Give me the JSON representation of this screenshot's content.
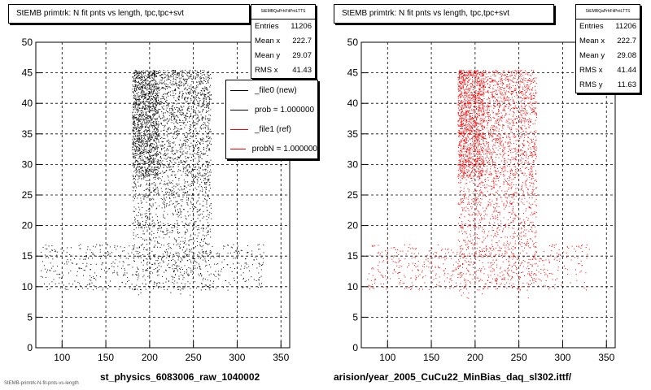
{
  "chart_data": [
    {
      "type": "scatter",
      "title": "StEMB primtrk: N fit pnts vs length, tpc,tpc+svt",
      "xlabel": "st_physics_6083006_raw_1040002",
      "ylabel": "",
      "xlim": [
        70,
        360
      ],
      "ylim": [
        0,
        50
      ],
      "xticks": [
        100,
        150,
        200,
        250,
        300,
        350
      ],
      "yticks": [
        0,
        5,
        10,
        15,
        20,
        25,
        30,
        35,
        40,
        45,
        50
      ],
      "grid": true,
      "marker_color": "#000000",
      "stats": {
        "header": "StEMBQaPrhFitPntLTTS",
        "rows": [
          {
            "label": "Entries",
            "value": "11206"
          },
          {
            "label": "Mean x",
            "value": "222.7"
          },
          {
            "label": "Mean y",
            "value": "29.07"
          },
          {
            "label": "RMS x",
            "value": "41.43"
          }
        ]
      },
      "legend": {
        "placement": "top-right",
        "entries": [
          {
            "label": "_file0 (new)",
            "color": "#000000"
          },
          {
            "label": "prob = 1.000000",
            "color": "#000000"
          },
          {
            "label": "_file1 (ref)",
            "color": "#ff0000"
          },
          {
            "label": "probN = 1.000000",
            "color": "#ff0000"
          }
        ]
      },
      "density_regions": [
        {
          "x": [
            180,
            270
          ],
          "y": [
            8,
            45.5
          ],
          "weight": 0.66
        },
        {
          "x": [
            180,
            210
          ],
          "y": [
            28,
            45.5
          ],
          "weight": 0.2
        },
        {
          "x": [
            75,
            330
          ],
          "y": [
            9.5,
            17
          ],
          "weight": 0.14
        }
      ]
    },
    {
      "type": "scatter",
      "title": "StEMB primtrk: N fit pnts vs length, tpc,tpc+svt",
      "xlabel": "arision/year_2005_CuCu22_MinBias_daq_sl302.ittf/",
      "ylabel": "",
      "xlim": [
        70,
        360
      ],
      "ylim": [
        0,
        50
      ],
      "xticks": [
        100,
        150,
        200,
        250,
        300,
        350
      ],
      "yticks": [
        0,
        5,
        10,
        15,
        20,
        25,
        30,
        35,
        40,
        45,
        50
      ],
      "grid": true,
      "marker_color": "#ff0000",
      "stats": {
        "header": "StEMBQaPrhFitPntLTTS",
        "rows": [
          {
            "label": "Entries",
            "value": "11206"
          },
          {
            "label": "Mean x",
            "value": "222.7"
          },
          {
            "label": "Mean y",
            "value": "29.08"
          },
          {
            "label": "RMS x",
            "value": "41.44"
          },
          {
            "label": "RMS y",
            "value": "11.63"
          }
        ]
      },
      "density_regions": [
        {
          "x": [
            180,
            270
          ],
          "y": [
            8,
            45.5
          ],
          "weight": 0.66
        },
        {
          "x": [
            180,
            210
          ],
          "y": [
            28,
            45.5
          ],
          "weight": 0.2
        },
        {
          "x": [
            75,
            330
          ],
          "y": [
            9.5,
            17
          ],
          "weight": 0.14
        }
      ]
    }
  ],
  "footer": "StEMB-primtrk-N-fit-pnts-vs-length"
}
